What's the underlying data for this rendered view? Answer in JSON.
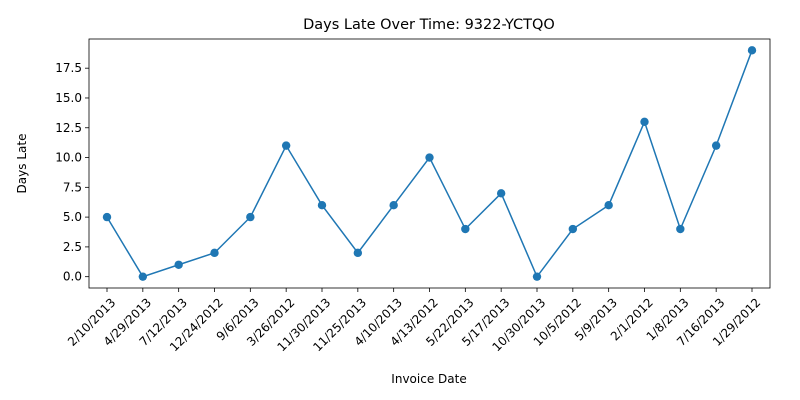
{
  "chart_data": {
    "type": "line",
    "title": "Days Late Over Time: 9322-YCTQO",
    "xlabel": "Invoice Date",
    "ylabel": "Days Late",
    "categories": [
      "2/10/2013",
      "4/29/2013",
      "7/12/2013",
      "12/24/2012",
      "9/6/2013",
      "3/26/2012",
      "11/30/2013",
      "11/25/2013",
      "4/10/2013",
      "4/13/2012",
      "5/22/2013",
      "5/17/2013",
      "10/30/2013",
      "10/5/2012",
      "5/9/2013",
      "2/1/2012",
      "1/8/2013",
      "7/16/2013",
      "1/29/2012"
    ],
    "series": [
      {
        "values": [
          5,
          0,
          1,
          2,
          5,
          11,
          6,
          2,
          6,
          10,
          4,
          7,
          0,
          4,
          6,
          13,
          4,
          11,
          19
        ],
        "color": "#1f77b4"
      }
    ],
    "ylim": [
      -0.95,
      19.95
    ],
    "yticks": [
      "0.0",
      "2.5",
      "5.0",
      "7.5",
      "10.0",
      "12.5",
      "15.0",
      "17.5"
    ],
    "grid": false,
    "legend": "none"
  }
}
